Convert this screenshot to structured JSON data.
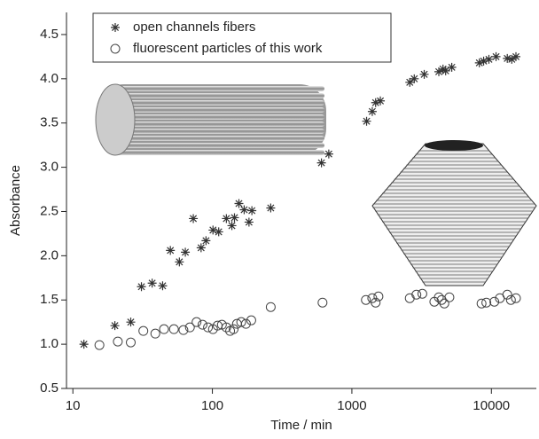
{
  "chart_data": {
    "type": "scatter",
    "xlabel": "Time / min",
    "ylabel": "Absorbance",
    "xscale": "log",
    "xlim": [
      9,
      21000
    ],
    "ylim": [
      0.5,
      4.75
    ],
    "xticks": [
      10,
      100,
      1000,
      10000
    ],
    "yticks": [
      0.5,
      {
        "value": 1,
        "label": "1.0"
      },
      1.5,
      {
        "value": 2,
        "label": "2.0"
      },
      2.5,
      {
        "value": 3,
        "label": "3.0"
      },
      3.5,
      {
        "value": 4,
        "label": "4.0"
      },
      4.5
    ],
    "legend": "upper left",
    "series": [
      {
        "name": "open channels fibers",
        "color": "#333333",
        "marker": "star",
        "x": [
          12,
          20,
          26,
          31,
          37,
          44,
          50,
          58,
          64,
          73,
          83,
          90,
          101,
          111,
          126,
          138,
          144,
          155,
          169,
          183,
          192,
          262,
          605,
          683,
          1275,
          1400,
          1480,
          1600,
          2600,
          2800,
          3300,
          4200,
          4500,
          4700,
          5200,
          8200,
          8800,
          9600,
          10800,
          13000,
          14000,
          15000
        ],
        "values": [
          1.0,
          1.21,
          1.25,
          1.65,
          1.69,
          1.66,
          2.06,
          1.93,
          2.04,
          2.42,
          2.09,
          2.17,
          2.29,
          2.27,
          2.42,
          2.34,
          2.43,
          2.59,
          2.52,
          2.38,
          2.51,
          2.54,
          3.05,
          3.15,
          3.52,
          3.63,
          3.73,
          3.75,
          3.96,
          4.0,
          4.05,
          4.08,
          4.11,
          4.09,
          4.13,
          4.18,
          4.2,
          4.22,
          4.25,
          4.23,
          4.22,
          4.25
        ]
      },
      {
        "name": "fluorescent particles of this work",
        "color": "#444444",
        "marker": "circle",
        "x": [
          15.5,
          21,
          26,
          32,
          39,
          45,
          53,
          62,
          69,
          77,
          85,
          93,
          101,
          109,
          117,
          126,
          134,
          142,
          150,
          161,
          174,
          190,
          262,
          616,
          1260,
          1400,
          1480,
          1550,
          2600,
          2900,
          3200,
          3900,
          4200,
          4400,
          4600,
          5000,
          8500,
          9200,
          10500,
          11500,
          13000,
          13800,
          15000
        ],
        "values": [
          0.99,
          1.03,
          1.02,
          1.15,
          1.12,
          1.17,
          1.17,
          1.16,
          1.19,
          1.25,
          1.22,
          1.19,
          1.17,
          1.21,
          1.22,
          1.19,
          1.15,
          1.17,
          1.23,
          1.25,
          1.23,
          1.27,
          1.42,
          1.47,
          1.5,
          1.52,
          1.47,
          1.54,
          1.52,
          1.56,
          1.57,
          1.48,
          1.53,
          1.5,
          1.46,
          1.53,
          1.46,
          1.47,
          1.48,
          1.52,
          1.56,
          1.5,
          1.52
        ]
      }
    ]
  }
}
